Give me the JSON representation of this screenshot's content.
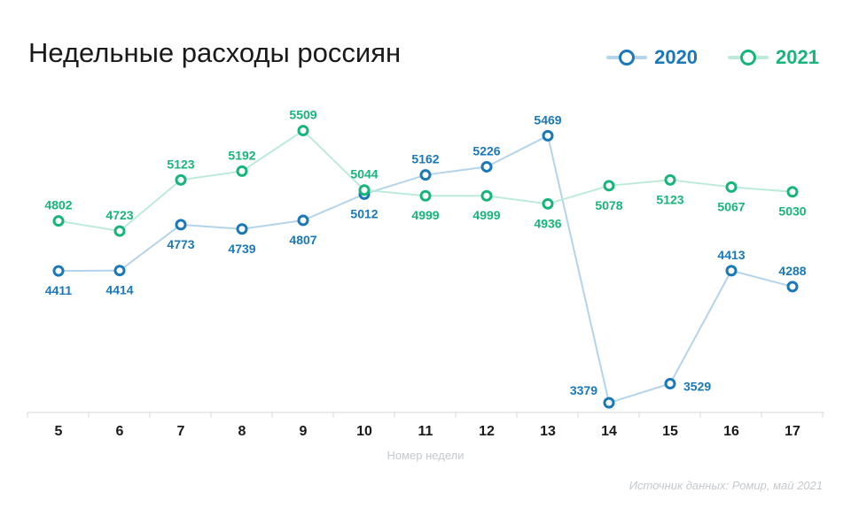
{
  "title": "Недельные расходы россиян",
  "source": "Источник данных: Ромир, май 2021",
  "chart_data": {
    "type": "line",
    "title": "Недельные расходы россиян",
    "xlabel": "Номер недели",
    "ylabel": "",
    "categories": [
      "5",
      "6",
      "7",
      "8",
      "9",
      "10",
      "11",
      "12",
      "13",
      "14",
      "15",
      "16",
      "17"
    ],
    "ylim": [
      3200,
      5700
    ],
    "grid": false,
    "legend_position": "top-right",
    "series": [
      {
        "name": "2020",
        "color": "#1a78b8",
        "line_color": "#b3d4ea",
        "values": [
          4411,
          4414,
          4773,
          4739,
          4807,
          5012,
          5162,
          5226,
          5469,
          3379,
          3529,
          4413,
          4288
        ],
        "label_positions": [
          "below",
          "below",
          "below",
          "below",
          "below",
          "below",
          "above",
          "above",
          "above",
          "left",
          "right",
          "above",
          "above"
        ]
      },
      {
        "name": "2021",
        "color": "#17b57a",
        "line_color": "#bdebd8",
        "values": [
          4802,
          4723,
          5123,
          5192,
          5509,
          5044,
          4999,
          4999,
          4936,
          5078,
          5123,
          5067,
          5030
        ],
        "label_positions": [
          "above",
          "above",
          "above",
          "above",
          "above",
          "above",
          "below",
          "below",
          "below",
          "below",
          "below",
          "below",
          "below"
        ]
      }
    ]
  }
}
